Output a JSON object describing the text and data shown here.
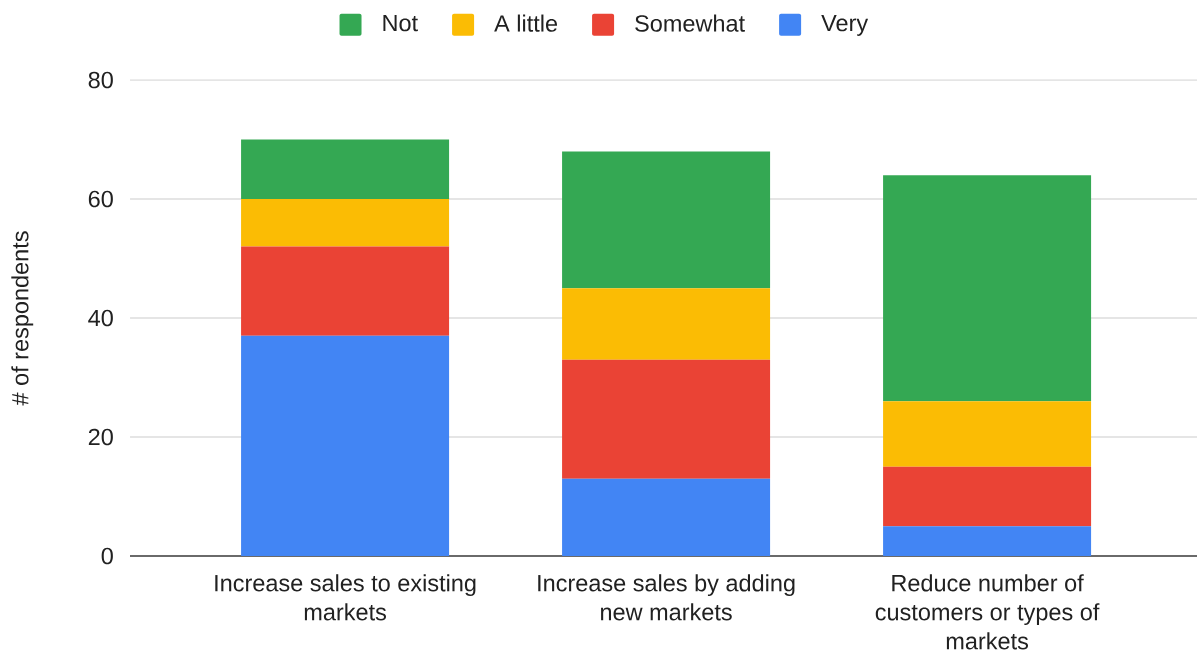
{
  "chart_data": {
    "type": "bar",
    "stacked": true,
    "categories": [
      "Increase sales to existing markets",
      "Increase sales by adding new markets",
      "Reduce number of customers or types of markets"
    ],
    "series": [
      {
        "name": "Very",
        "color": "#4285f4",
        "values": [
          37,
          13,
          5
        ]
      },
      {
        "name": "Somewhat",
        "color": "#ea4335",
        "values": [
          15,
          20,
          10
        ]
      },
      {
        "name": "A little",
        "color": "#fbbc04",
        "values": [
          8,
          12,
          11
        ]
      },
      {
        "name": "Not",
        "color": "#34a853",
        "values": [
          10,
          23,
          38
        ]
      }
    ],
    "ylabel": "# of respondents",
    "ylim": [
      0,
      80
    ],
    "yticks": [
      0,
      20,
      40,
      60,
      80
    ],
    "grid": "y",
    "legend": "top"
  }
}
